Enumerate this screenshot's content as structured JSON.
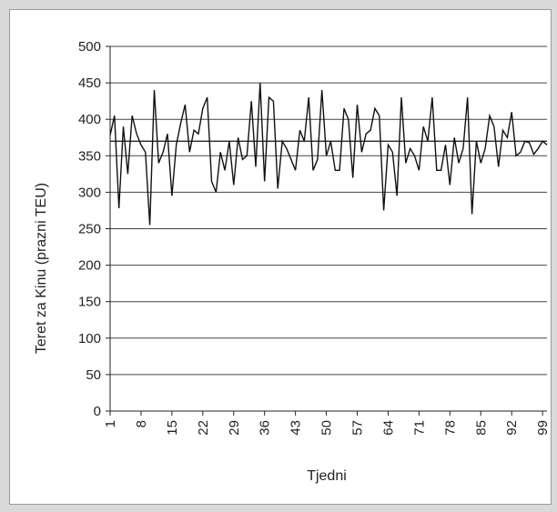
{
  "chart_data": {
    "type": "line",
    "title": "",
    "xlabel": "Tjedni",
    "ylabel": "Teret za Kinu (prazni TEU)",
    "ylim": [
      0,
      500
    ],
    "yticks": [
      0,
      50,
      100,
      150,
      200,
      250,
      300,
      350,
      400,
      450,
      500
    ],
    "xlim": [
      1,
      100
    ],
    "xticks": [
      1,
      8,
      15,
      22,
      29,
      36,
      43,
      50,
      57,
      64,
      71,
      78,
      85,
      92,
      99
    ],
    "grid": "horizontal",
    "legend": "none",
    "mean_line": 370,
    "colors": {
      "line": "#111111",
      "grid": "#444444",
      "frame": "#9a9a9a"
    },
    "series": [
      {
        "x": [
          1,
          2,
          3,
          4,
          5,
          6,
          7,
          8,
          9,
          10,
          11,
          12,
          13,
          14,
          15,
          16,
          17,
          18,
          19,
          20,
          21,
          22,
          23,
          24,
          25,
          26,
          27,
          28,
          29,
          30,
          31,
          32,
          33,
          34,
          35,
          36,
          37,
          38,
          39,
          40,
          41,
          42,
          43,
          44,
          45,
          46,
          47,
          48,
          49,
          50,
          51,
          52,
          53,
          54,
          55,
          56,
          57,
          58,
          59,
          60,
          61,
          62,
          63,
          64,
          65,
          66,
          67,
          68,
          69,
          70,
          71,
          72,
          73,
          74,
          75,
          76,
          77,
          78,
          79,
          80,
          81,
          82,
          83,
          84,
          85,
          86,
          87,
          88,
          89,
          90,
          91,
          92,
          93,
          94,
          95,
          96,
          97,
          98,
          99,
          100
        ],
        "values": [
          378,
          405,
          278,
          390,
          325,
          405,
          380,
          365,
          355,
          255,
          440,
          340,
          355,
          380,
          295,
          365,
          395,
          420,
          355,
          385,
          380,
          415,
          430,
          315,
          300,
          355,
          330,
          370,
          310,
          375,
          345,
          350,
          425,
          335,
          450,
          315,
          430,
          425,
          305,
          370,
          360,
          345,
          330,
          385,
          370,
          430,
          330,
          345,
          440,
          350,
          370,
          330,
          330,
          415,
          400,
          320,
          420,
          355,
          380,
          385,
          415,
          405,
          275,
          365,
          355,
          295,
          430,
          340,
          360,
          350,
          330,
          390,
          370,
          430,
          330,
          330,
          365,
          310,
          375,
          340,
          360,
          430,
          270,
          370,
          340,
          360,
          405,
          390,
          335,
          385,
          375,
          410,
          350,
          355,
          370,
          368,
          352,
          360,
          370,
          365
        ]
      }
    ]
  }
}
